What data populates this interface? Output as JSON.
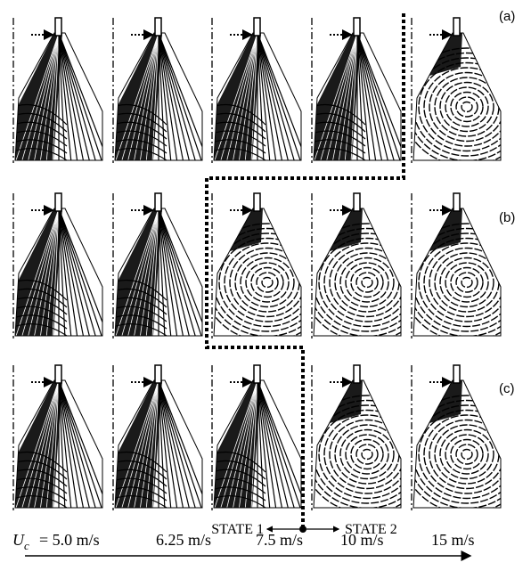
{
  "panels": [
    {
      "label": "(a)"
    },
    {
      "label": "(b)"
    },
    {
      "label": "(c)"
    }
  ],
  "states": {
    "left": "STATE 1",
    "right": "STATE 2"
  },
  "velocity": {
    "symbol": "U",
    "subscript": "c",
    "labels": [
      "= 5.0 m/s",
      "6.25 m/s",
      "7.5 m/s",
      "10 m/s",
      "15 m/s"
    ]
  }
}
